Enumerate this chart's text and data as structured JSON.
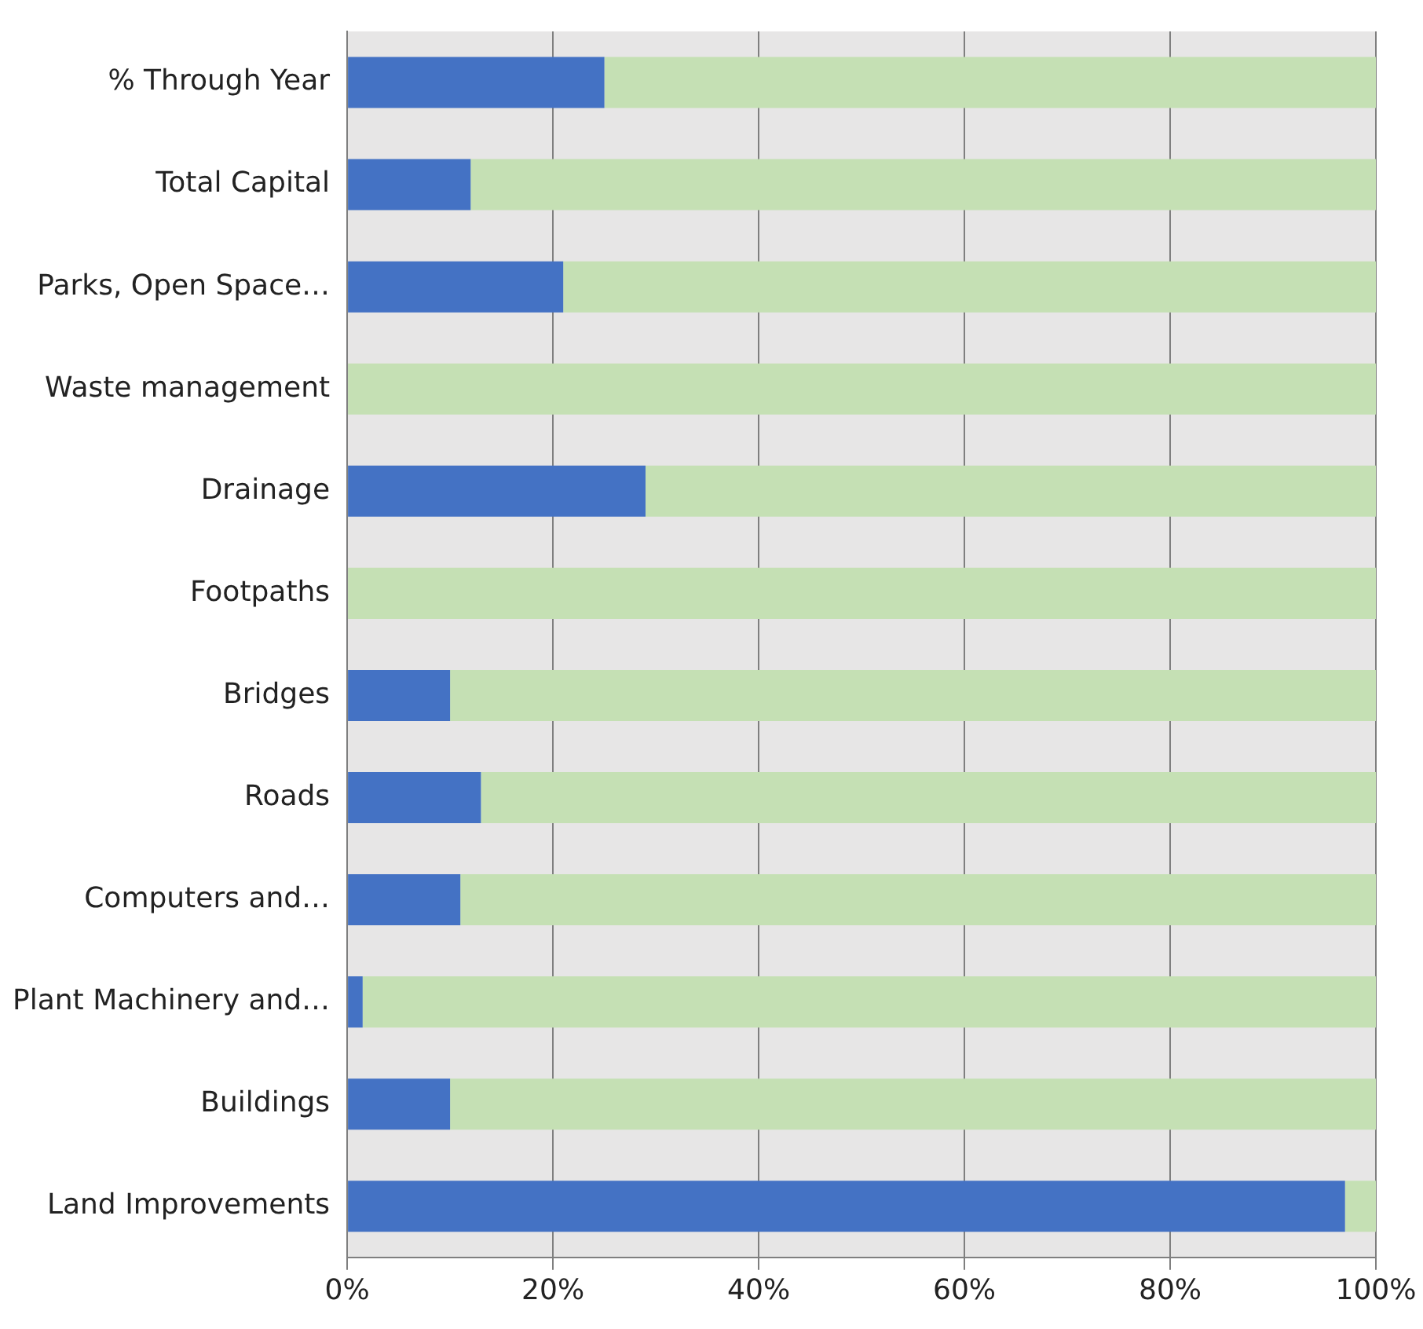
{
  "chart_data": {
    "type": "bar",
    "orientation": "horizontal",
    "stacked": true,
    "categories": [
      "% Through Year",
      "Total Capital",
      "Parks, Open Space…",
      "Waste management",
      "Drainage",
      "Footpaths",
      "Bridges",
      "Roads",
      "Computers and…",
      "Plant Machinery and…",
      "Buildings",
      "Land Improvements"
    ],
    "series": [
      {
        "color": "#4472c4",
        "values": [
          25,
          12,
          21,
          0,
          29,
          0,
          10,
          13,
          11,
          1.5,
          10,
          97
        ]
      },
      {
        "color": "#c5e0b4",
        "values": [
          75,
          88,
          79,
          100,
          71,
          100,
          90,
          87,
          89,
          98.5,
          90,
          3
        ]
      }
    ],
    "xlim": [
      0,
      100
    ],
    "xticks": [
      {
        "value": 0,
        "label": "0%"
      },
      {
        "value": 20,
        "label": "20%"
      },
      {
        "value": 40,
        "label": "40%"
      },
      {
        "value": 60,
        "label": "60%"
      },
      {
        "value": 80,
        "label": "80%"
      },
      {
        "value": 100,
        "label": "100%"
      }
    ],
    "grid": "x",
    "legend": false
  }
}
